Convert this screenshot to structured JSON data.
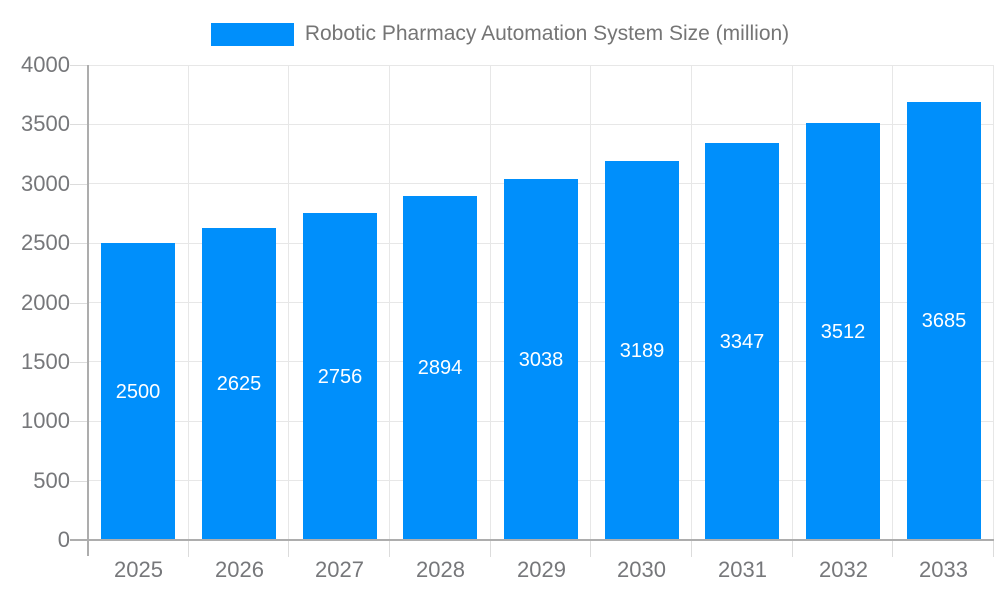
{
  "legend": {
    "label": "Robotic Pharmacy Automation System Size (million)"
  },
  "chart_data": {
    "type": "bar",
    "title": "Robotic Pharmacy Automation System Size (million)",
    "categories": [
      "2025",
      "2026",
      "2027",
      "2028",
      "2029",
      "2030",
      "2031",
      "2032",
      "2033"
    ],
    "series": [
      {
        "name": "Robotic Pharmacy Automation System Size (million)",
        "values": [
          2500,
          2625,
          2756,
          2894,
          3038,
          3189,
          3347,
          3512,
          3685
        ]
      }
    ],
    "yticks": [
      0,
      500,
      1000,
      1500,
      2000,
      2500,
      3000,
      3500,
      4000
    ],
    "ylim": [
      0,
      4000
    ],
    "xlabel": "",
    "ylabel": "",
    "grid": true,
    "legend_position": "top",
    "bar_value_labels_inside": true,
    "colors": {
      "bar": "#008FFB",
      "bar_label": "#FFFFFF",
      "axis_text": "#76777A",
      "legend_text": "#757575",
      "grid_line": "#E7E7E7",
      "tick_line": "#DCDCDC",
      "axis_line": "#ADADAD"
    }
  }
}
